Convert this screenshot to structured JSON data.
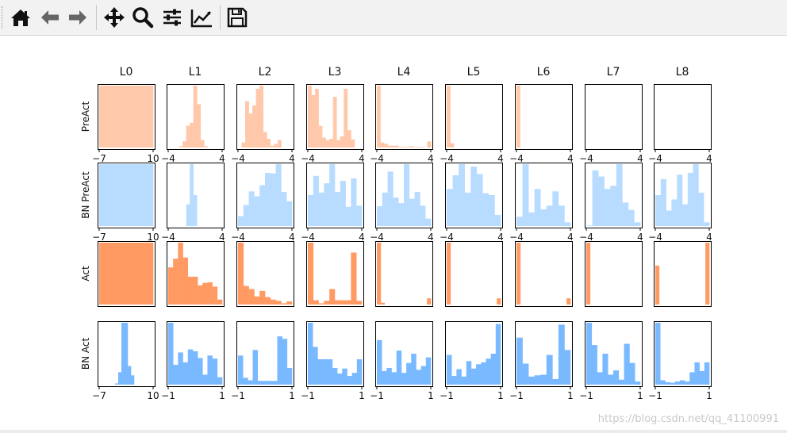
{
  "toolbar": {
    "buttons": [
      {
        "name": "home-button",
        "icon": "home-icon"
      },
      {
        "name": "back-button",
        "icon": "arrow-left-icon"
      },
      {
        "name": "forward-button",
        "icon": "arrow-right-icon"
      },
      {
        "name": "pan-button",
        "icon": "move-icon"
      },
      {
        "name": "zoom-button",
        "icon": "search-icon"
      },
      {
        "name": "subplots-button",
        "icon": "sliders-icon"
      },
      {
        "name": "edit-axis-button",
        "icon": "line-chart-icon"
      },
      {
        "name": "save-button",
        "icon": "save-icon"
      }
    ]
  },
  "watermark": "https://blog.csdn.net/qq_41100991",
  "chart_data": {
    "type": "histogram-grid",
    "columns": [
      "L0",
      "L1",
      "L2",
      "L3",
      "L4",
      "L5",
      "L6",
      "L7",
      "L8"
    ],
    "rows": [
      {
        "label": "PreAct",
        "color": "#ffc8aa",
        "x_ticks": {
          "L0": [
            "-7",
            "10"
          ],
          "L1": [
            "-4",
            "4"
          ],
          "L2": [
            "-4",
            "4"
          ],
          "L3": [
            "-4",
            "4"
          ],
          "L4": [
            "-4",
            "4"
          ],
          "L5": [
            "-4",
            "4"
          ],
          "L6": [
            "-4",
            "4"
          ],
          "L7": [
            "-4",
            "4"
          ],
          "L8": [
            "-4",
            "4"
          ]
        },
        "histograms": [
          [
            1
          ],
          [
            0,
            0,
            0,
            0.02,
            0.1,
            0.35,
            0.4,
            1.0,
            0.7,
            0.12,
            0.02,
            0,
            0,
            0,
            0
          ],
          [
            0,
            0.08,
            0.75,
            0.55,
            0.68,
            0.95,
            1.0,
            0.25,
            0.14,
            0.03,
            0.06,
            0.12,
            0,
            0,
            0
          ],
          [
            1.0,
            0.85,
            0.95,
            0.35,
            0.16,
            0.12,
            0.14,
            0.82,
            0.12,
            0.18,
            0.95,
            0.28,
            0.13,
            0,
            0
          ],
          [
            1.0,
            0.08,
            0.06,
            0.03,
            0.03,
            0.03,
            0.01,
            0.01,
            0.01,
            0.02,
            0.01,
            0.01,
            0.01,
            0,
            0.1
          ],
          [
            1.0,
            0.07,
            0,
            0,
            0,
            0,
            0,
            0,
            0,
            0,
            0,
            0,
            0,
            0,
            0
          ],
          [
            1.0,
            0,
            0,
            0,
            0,
            0,
            0,
            0,
            0,
            0,
            0,
            0,
            0,
            0,
            0
          ],
          [],
          []
        ]
      },
      {
        "label": "BN PreAct",
        "color": "#b8dcff",
        "x_ticks": {
          "L0": [
            "-7",
            "10"
          ],
          "L1": [
            "-4",
            "4"
          ],
          "L2": [
            "-4",
            "4"
          ],
          "L3": [
            "-4",
            "4"
          ],
          "L4": [
            "-4",
            "4"
          ],
          "L5": [
            "-4",
            "4"
          ],
          "L6": [
            "-4",
            "4"
          ],
          "L7": [
            "-4",
            "4"
          ],
          "L8": [
            "-4",
            "4"
          ]
        },
        "histograms": [
          [
            1
          ],
          [
            0,
            0,
            0,
            0,
            0,
            0.35,
            1.0,
            0.5,
            0,
            0,
            0,
            0,
            0,
            0,
            0
          ],
          [
            0.16,
            0.34,
            0.56,
            0.48,
            0.66,
            0.86,
            0.85,
            1.0,
            0.55,
            0.4
          ],
          [
            0.5,
            0.81,
            0.54,
            0.69,
            1.0,
            0.55,
            0.73,
            0.31,
            0.77,
            0.33
          ],
          [
            0.32,
            0.54,
            0.88,
            0.46,
            0.37,
            1.0,
            0.44,
            0.55,
            0.33,
            0.12
          ],
          [
            0.6,
            0.82,
            1.0,
            0.54,
            0.96,
            0.84,
            0.53,
            0.5,
            0.18
          ],
          [
            0.15,
            1.0,
            0.22,
            0.6,
            0.27,
            0.33,
            0.56,
            0.33,
            0.06
          ],
          [
            0.01,
            0.9,
            0.8,
            0.6,
            0.65,
            1.0,
            0.38,
            0.26,
            0.06
          ],
          [
            0.5,
            0.76,
            0.25,
            0.43,
            0.83,
            0.35,
            0.86,
            1.0,
            0.54,
            0.06
          ]
        ]
      },
      {
        "label": "Act",
        "color": "#ff9a62",
        "x_ticks": {},
        "histograms": [
          [
            1
          ],
          [
            0.6,
            0.74,
            1.0,
            0.76,
            0.45,
            0.45,
            0.31,
            0.35,
            0.36,
            0.29,
            0.08
          ],
          [
            1.0,
            0.3,
            0.25,
            0.13,
            0.22,
            0.12,
            0.08,
            0.06,
            0.02,
            0.05
          ],
          [
            1.0,
            0.07,
            0.02,
            0.06,
            0.25,
            0.07,
            0.07,
            0.07,
            0.84,
            0.06
          ],
          [
            1.0,
            0.03,
            0,
            0,
            0,
            0,
            0,
            0,
            0,
            0,
            0,
            0,
            0,
            0.1
          ],
          [
            1.0,
            0,
            0,
            0,
            0,
            0,
            0,
            0,
            0,
            0,
            0,
            0,
            0,
            0.1
          ],
          [
            1.0,
            0,
            0,
            0,
            0,
            0,
            0,
            0,
            0,
            0,
            0,
            0,
            0,
            0.1
          ],
          [
            1.0,
            0,
            0,
            0,
            0,
            0,
            0,
            0,
            0,
            0,
            0,
            0,
            0,
            0
          ],
          [
            0.63,
            0,
            0,
            0,
            0,
            0,
            0,
            0,
            0,
            0,
            0,
            0,
            0,
            1.0
          ]
        ]
      },
      {
        "label": "BN Act",
        "color": "#79b9ff",
        "x_ticks": {
          "L0": [
            "-7",
            "10"
          ],
          "L1": [
            "-1",
            "1"
          ],
          "L2": [
            "-1",
            "1"
          ],
          "L3": [
            "-1",
            "1"
          ],
          "L4": [
            "-1",
            "1"
          ],
          "L5": [
            "-1",
            "1"
          ],
          "L6": [
            "-1",
            "1"
          ],
          "L7": [
            "-1",
            "1"
          ],
          "L8": [
            "-1",
            "1"
          ]
        },
        "histograms": [
          [
            0,
            0,
            0,
            0,
            0,
            0.02,
            0.2,
            1.0,
            1.0,
            0.3,
            0.15,
            0,
            0,
            0,
            0,
            0,
            0
          ],
          [
            1.0,
            0.32,
            0.52,
            0.36,
            0.57,
            0.54,
            0.43,
            0.16,
            0.47,
            0.42,
            0.12
          ],
          [
            0.47,
            0.11,
            0.07,
            0.56,
            0.06,
            0.06,
            0.06,
            0.06,
            0.78,
            0.74,
            0.27
          ],
          [
            1.0,
            0.61,
            0.41,
            0.41,
            0.41,
            0.27,
            0.18,
            0.26,
            0.14,
            0.19,
            0.41
          ],
          [
            0.72,
            0.22,
            0.27,
            0.2,
            0.55,
            0.19,
            0.35,
            0.5,
            0.24,
            0.3,
            0.44
          ],
          [
            0.48,
            0.14,
            0.25,
            0.13,
            0.38,
            0.26,
            0.33,
            0.36,
            0.42,
            0.5,
            0.98
          ],
          [
            0.76,
            0.34,
            0.13,
            0.15,
            0.16,
            0.48,
            0.09,
            0.97,
            0.56
          ],
          [
            1.0,
            0.64,
            0.2,
            0.5,
            0.16,
            0.23,
            0.08,
            0.66,
            0.35,
            0.05
          ],
          [
            1.0,
            0.07,
            0.04,
            0.03,
            0.05,
            0.07,
            0.05,
            0.2,
            0.36,
            0.22,
            0.36
          ]
        ]
      }
    ]
  }
}
